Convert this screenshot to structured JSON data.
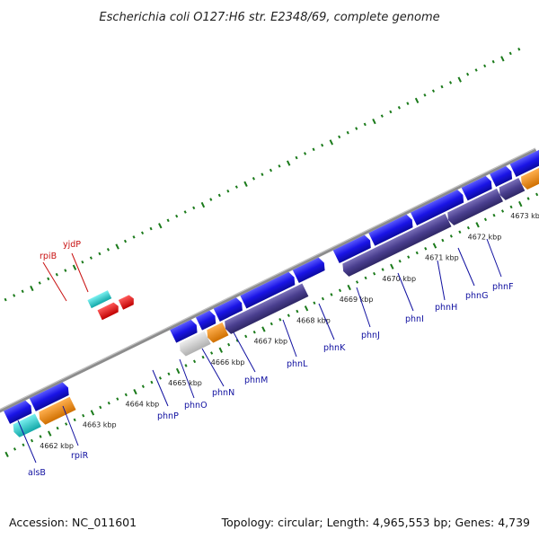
{
  "title": "Escherichia coli O127:H6 str. E2348/69, complete genome",
  "footer": {
    "accession": "Accession: NC_011601",
    "summary": "Topology: circular; Length: 4,965,553 bp; Genes: 4,739"
  },
  "colors": {
    "forward_cds": "#1a14e6",
    "reverse_cds": "#4a3f8f",
    "rna_cyan": "#1fc9c9",
    "rna_red": "#e01010",
    "orange": "#f08c10",
    "gray": "#c8c8c8",
    "backbone": "#8c8c8c",
    "ticks": "#1a7a1a",
    "label_blue": "#1010a0",
    "label_red": "#c81010"
  },
  "kbp_ticks": [
    "4662 kbp",
    "4663 kbp",
    "4664 kbp",
    "4665 kbp",
    "4666 kbp",
    "4667 kbp",
    "4668 kbp",
    "4669 kbp",
    "4670 kbp",
    "4671 kbp",
    "4672 kbp",
    "4673 kbp"
  ],
  "gene_labels": [
    {
      "name": "rpiB",
      "color": "red"
    },
    {
      "name": "yjdP",
      "color": "red"
    },
    {
      "name": "alsB",
      "color": "blue"
    },
    {
      "name": "rpiR",
      "color": "blue"
    },
    {
      "name": "phnP",
      "color": "blue"
    },
    {
      "name": "phnO",
      "color": "blue"
    },
    {
      "name": "phnN",
      "color": "blue"
    },
    {
      "name": "phnM",
      "color": "blue"
    },
    {
      "name": "phnL",
      "color": "blue"
    },
    {
      "name": "phnK",
      "color": "blue"
    },
    {
      "name": "phnJ",
      "color": "blue"
    },
    {
      "name": "phnI",
      "color": "blue"
    },
    {
      "name": "phnH",
      "color": "blue"
    },
    {
      "name": "phnG",
      "color": "blue"
    },
    {
      "name": "phnF",
      "color": "blue"
    }
  ]
}
